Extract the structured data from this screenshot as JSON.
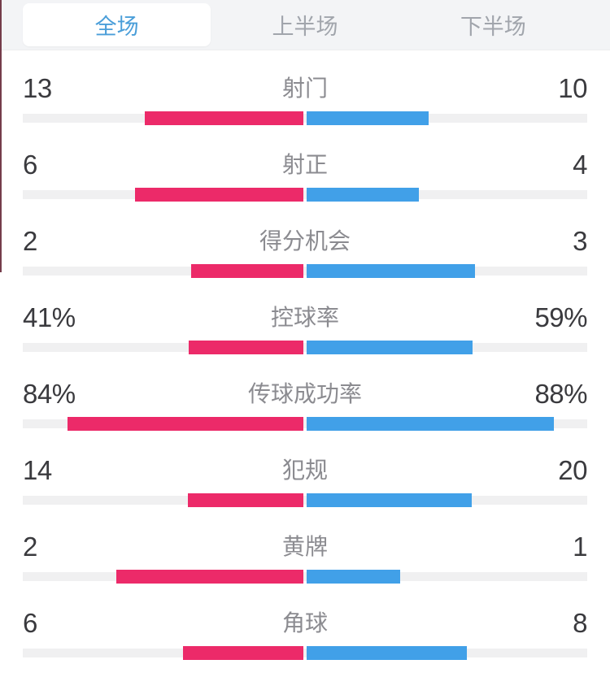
{
  "tabs": {
    "items": [
      {
        "id": "full-match",
        "label": "全场",
        "active": true
      },
      {
        "id": "first-half",
        "label": "上半场",
        "active": false
      },
      {
        "id": "second-half",
        "label": "下半场",
        "active": false
      }
    ]
  },
  "colors": {
    "home_bar": "#EC2A69",
    "away_bar": "#41A0E8",
    "bar_track": "#F0F0F1",
    "tabbar_bg": "#F3F4F6",
    "active_tab_bg": "#FFFFFF",
    "active_tab_text": "#4A9ED9",
    "inactive_tab_text": "#A1A5AC",
    "value_text": "#3A3A3E",
    "label_text": "#8B8B90"
  },
  "chart_data": {
    "type": "bar",
    "orientation": "paired-horizontal-from-center",
    "stats": [
      {
        "label": "射门",
        "home": "13",
        "away": "10",
        "home_value": 13,
        "away_value": 10,
        "kind": "count"
      },
      {
        "label": "射正",
        "home": "6",
        "away": "4",
        "home_value": 6,
        "away_value": 4,
        "kind": "count"
      },
      {
        "label": "得分机会",
        "home": "2",
        "away": "3",
        "home_value": 2,
        "away_value": 3,
        "kind": "count"
      },
      {
        "label": "控球率",
        "home": "41%",
        "away": "59%",
        "home_value": 41,
        "away_value": 59,
        "kind": "percent"
      },
      {
        "label": "传球成功率",
        "home": "84%",
        "away": "88%",
        "home_value": 84,
        "away_value": 88,
        "kind": "percent"
      },
      {
        "label": "犯规",
        "home": "14",
        "away": "20",
        "home_value": 14,
        "away_value": 20,
        "kind": "count"
      },
      {
        "label": "黄牌",
        "home": "2",
        "away": "1",
        "home_value": 2,
        "away_value": 1,
        "kind": "count"
      },
      {
        "label": "角球",
        "home": "6",
        "away": "8",
        "home_value": 6,
        "away_value": 8,
        "kind": "count"
      }
    ]
  }
}
